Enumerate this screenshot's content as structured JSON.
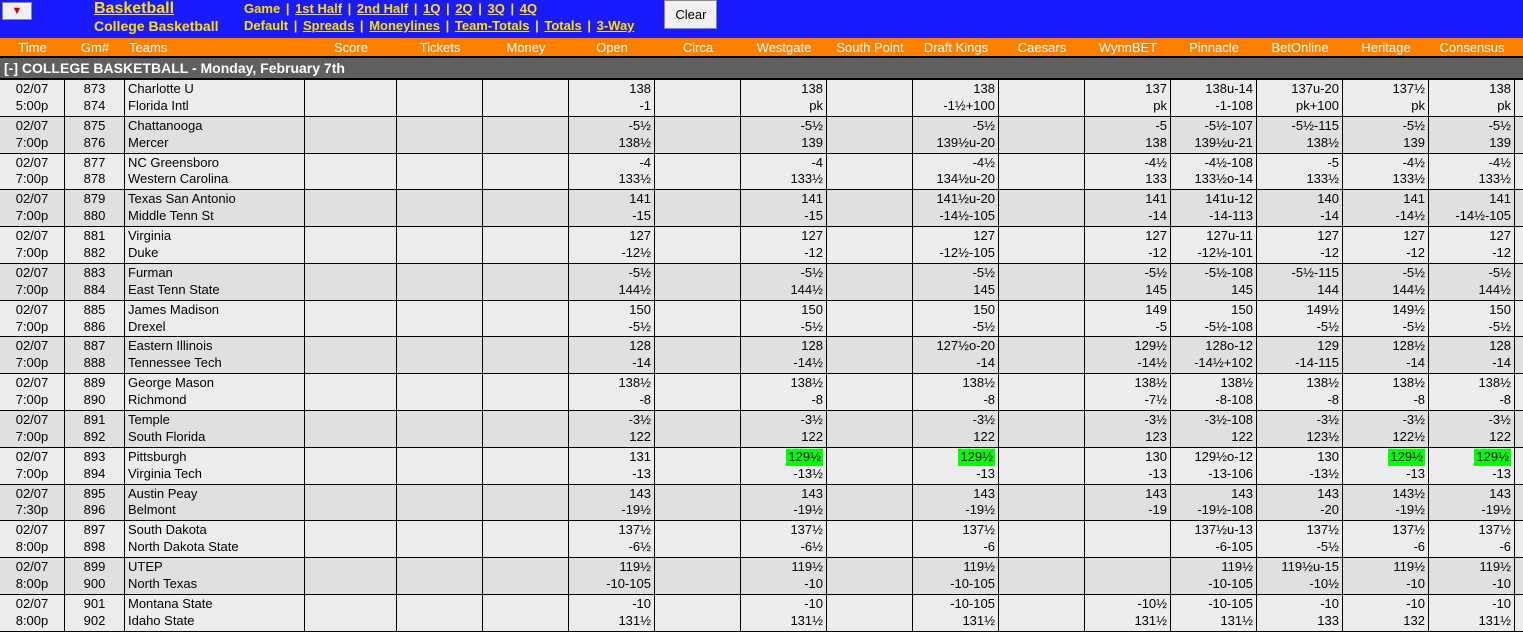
{
  "header": {
    "sport_title": "Basketball",
    "sport_sub": "College Basketball",
    "game_label": "Game",
    "links": [
      "1st Half",
      "2nd Half",
      "1Q",
      "2Q",
      "3Q",
      "4Q"
    ],
    "default_label": "Default",
    "bet_links": [
      "Spreads",
      "Moneylines",
      "Team-Totals",
      "Totals",
      "3-Way"
    ],
    "clear_label": "Clear"
  },
  "columns": [
    "Time",
    "Gm#",
    "Teams",
    "Score",
    "Tickets",
    "Money",
    "Open",
    "Circa",
    "Westgate",
    "South Point",
    "Draft Kings",
    "Caesars",
    "WynnBET",
    "Pinnacle",
    "BetOnline",
    "Heritage",
    "Consensus"
  ],
  "section_title": "[-]  COLLEGE BASKETBALL - Monday, February 7th",
  "odds_books": [
    "open",
    "circa",
    "westgate",
    "southpoint",
    "dk",
    "caesars",
    "wynnbet",
    "pinnacle",
    "betonline",
    "heritage",
    "consensus"
  ],
  "colors": {
    "header_bg": "#1a1aff",
    "accent_text": "#ffe000",
    "col_header_bg": "#ff7f00",
    "section_bg": "#606060",
    "row_bg_a": "#ececec",
    "row_bg_b": "#e0e0e0",
    "highlight": "#00ff00"
  },
  "games": [
    {
      "date": "02/07",
      "time": "5:00p",
      "gm1": "873",
      "gm2": "874",
      "team1": "Charlotte U",
      "team2": "Florida Intl",
      "open": [
        "138",
        "-1"
      ],
      "circa": [
        "",
        ""
      ],
      "westgate": [
        "138",
        "pk"
      ],
      "southpoint": [
        "",
        ""
      ],
      "dk": [
        "138",
        "-1½+100"
      ],
      "caesars": [
        "",
        ""
      ],
      "wynnbet": [
        "137",
        "pk"
      ],
      "pinnacle": [
        "138u-14",
        "-1-108"
      ],
      "betonline": [
        "137u-20",
        "pk+100"
      ],
      "heritage": [
        "137½",
        "pk"
      ],
      "consensus": [
        "138",
        "pk"
      ]
    },
    {
      "date": "02/07",
      "time": "7:00p",
      "gm1": "875",
      "gm2": "876",
      "team1": "Chattanooga",
      "team2": "Mercer",
      "open": [
        "-5½",
        "138½"
      ],
      "circa": [
        "",
        ""
      ],
      "westgate": [
        "-5½",
        "139"
      ],
      "southpoint": [
        "",
        ""
      ],
      "dk": [
        "-5½",
        "139½u-20"
      ],
      "caesars": [
        "",
        ""
      ],
      "wynnbet": [
        "-5",
        "138"
      ],
      "pinnacle": [
        "-5½-107",
        "139½u-21"
      ],
      "betonline": [
        "-5½-115",
        "138½"
      ],
      "heritage": [
        "-5½",
        "139"
      ],
      "consensus": [
        "-5½",
        "139"
      ]
    },
    {
      "date": "02/07",
      "time": "7:00p",
      "gm1": "877",
      "gm2": "878",
      "team1": "NC Greensboro",
      "team2": "Western Carolina",
      "open": [
        "-4",
        "133½"
      ],
      "circa": [
        "",
        ""
      ],
      "westgate": [
        "-4",
        "133½"
      ],
      "southpoint": [
        "",
        ""
      ],
      "dk": [
        "-4½",
        "134½u-20"
      ],
      "caesars": [
        "",
        ""
      ],
      "wynnbet": [
        "-4½",
        "133"
      ],
      "pinnacle": [
        "-4½-108",
        "133½o-14"
      ],
      "betonline": [
        "-5",
        "133½"
      ],
      "heritage": [
        "-4½",
        "133½"
      ],
      "consensus": [
        "-4½",
        "133½"
      ]
    },
    {
      "date": "02/07",
      "time": "7:00p",
      "gm1": "879",
      "gm2": "880",
      "team1": "Texas San Antonio",
      "team2": "Middle Tenn St",
      "open": [
        "141",
        "-15"
      ],
      "circa": [
        "",
        ""
      ],
      "westgate": [
        "141",
        "-15"
      ],
      "southpoint": [
        "",
        ""
      ],
      "dk": [
        "141½u-20",
        "-14½-105"
      ],
      "caesars": [
        "",
        ""
      ],
      "wynnbet": [
        "141",
        "-14"
      ],
      "pinnacle": [
        "141u-12",
        "-14-113"
      ],
      "betonline": [
        "140",
        "-14"
      ],
      "heritage": [
        "141",
        "-14½"
      ],
      "consensus": [
        "141",
        "-14½-105"
      ]
    },
    {
      "date": "02/07",
      "time": "7:00p",
      "gm1": "881",
      "gm2": "882",
      "team1": "Virginia",
      "team2": "Duke",
      "open": [
        "127",
        "-12½"
      ],
      "circa": [
        "",
        ""
      ],
      "westgate": [
        "127",
        "-12"
      ],
      "southpoint": [
        "",
        ""
      ],
      "dk": [
        "127",
        "-12½-105"
      ],
      "caesars": [
        "",
        ""
      ],
      "wynnbet": [
        "127",
        "-12"
      ],
      "pinnacle": [
        "127u-11",
        "-12½-101"
      ],
      "betonline": [
        "127",
        "-12"
      ],
      "heritage": [
        "127",
        "-12"
      ],
      "consensus": [
        "127",
        "-12"
      ]
    },
    {
      "date": "02/07",
      "time": "7:00p",
      "gm1": "883",
      "gm2": "884",
      "team1": "Furman",
      "team2": "East Tenn State",
      "open": [
        "-5½",
        "144½"
      ],
      "circa": [
        "",
        ""
      ],
      "westgate": [
        "-5½",
        "144½"
      ],
      "southpoint": [
        "",
        ""
      ],
      "dk": [
        "-5½",
        "145"
      ],
      "caesars": [
        "",
        ""
      ],
      "wynnbet": [
        "-5½",
        "145"
      ],
      "pinnacle": [
        "-5½-108",
        "145"
      ],
      "betonline": [
        "-5½-115",
        "144"
      ],
      "heritage": [
        "-5½",
        "144½"
      ],
      "consensus": [
        "-5½",
        "144½"
      ]
    },
    {
      "date": "02/07",
      "time": "7:00p",
      "gm1": "885",
      "gm2": "886",
      "team1": "James Madison",
      "team2": "Drexel",
      "open": [
        "150",
        "-5½"
      ],
      "circa": [
        "",
        ""
      ],
      "westgate": [
        "150",
        "-5½"
      ],
      "southpoint": [
        "",
        ""
      ],
      "dk": [
        "150",
        "-5½"
      ],
      "caesars": [
        "",
        ""
      ],
      "wynnbet": [
        "149",
        "-5"
      ],
      "pinnacle": [
        "150",
        "-5½-108"
      ],
      "betonline": [
        "149½",
        "-5½"
      ],
      "heritage": [
        "149½",
        "-5½"
      ],
      "consensus": [
        "150",
        "-5½"
      ]
    },
    {
      "date": "02/07",
      "time": "7:00p",
      "gm1": "887",
      "gm2": "888",
      "team1": "Eastern Illinois",
      "team2": "Tennessee Tech",
      "open": [
        "128",
        "-14"
      ],
      "circa": [
        "",
        ""
      ],
      "westgate": [
        "128",
        "-14½"
      ],
      "southpoint": [
        "",
        ""
      ],
      "dk": [
        "127½o-20",
        "-14"
      ],
      "caesars": [
        "",
        ""
      ],
      "wynnbet": [
        "129½",
        "-14½"
      ],
      "pinnacle": [
        "128o-12",
        "-14½+102"
      ],
      "betonline": [
        "129",
        "-14-115"
      ],
      "heritage": [
        "128½",
        "-14"
      ],
      "consensus": [
        "128",
        "-14"
      ]
    },
    {
      "date": "02/07",
      "time": "7:00p",
      "gm1": "889",
      "gm2": "890",
      "team1": "George Mason",
      "team2": "Richmond",
      "open": [
        "138½",
        "-8"
      ],
      "circa": [
        "",
        ""
      ],
      "westgate": [
        "138½",
        "-8"
      ],
      "southpoint": [
        "",
        ""
      ],
      "dk": [
        "138½",
        "-8"
      ],
      "caesars": [
        "",
        ""
      ],
      "wynnbet": [
        "138½",
        "-7½"
      ],
      "pinnacle": [
        "138½",
        "-8-108"
      ],
      "betonline": [
        "138½",
        "-8"
      ],
      "heritage": [
        "138½",
        "-8"
      ],
      "consensus": [
        "138½",
        "-8"
      ]
    },
    {
      "date": "02/07",
      "time": "7:00p",
      "gm1": "891",
      "gm2": "892",
      "team1": "Temple",
      "team2": "South Florida",
      "open": [
        "-3½",
        "122"
      ],
      "circa": [
        "",
        ""
      ],
      "westgate": [
        "-3½",
        "122"
      ],
      "southpoint": [
        "",
        ""
      ],
      "dk": [
        "-3½",
        "122"
      ],
      "caesars": [
        "",
        ""
      ],
      "wynnbet": [
        "-3½",
        "123"
      ],
      "pinnacle": [
        "-3½-108",
        "122"
      ],
      "betonline": [
        "-3½",
        "123½"
      ],
      "heritage": [
        "-3½",
        "122½"
      ],
      "consensus": [
        "-3½",
        "122"
      ]
    },
    {
      "date": "02/07",
      "time": "7:00p",
      "gm1": "893",
      "gm2": "894",
      "team1": "Pittsburgh",
      "team2": "Virginia Tech",
      "open": [
        "131",
        "-13"
      ],
      "circa": [
        "",
        ""
      ],
      "westgate": [
        "129½",
        "-13½"
      ],
      "westgate_hl": [
        true,
        false
      ],
      "southpoint": [
        "",
        ""
      ],
      "dk": [
        "129½",
        "-13"
      ],
      "dk_hl": [
        true,
        false
      ],
      "caesars": [
        "",
        ""
      ],
      "wynnbet": [
        "130",
        "-13"
      ],
      "pinnacle": [
        "129½o-12",
        "-13-106"
      ],
      "betonline": [
        "130",
        "-13½"
      ],
      "heritage": [
        "129½",
        "-13"
      ],
      "heritage_hl": [
        true,
        false
      ],
      "consensus": [
        "129½",
        "-13"
      ],
      "consensus_hl": [
        true,
        false
      ]
    },
    {
      "date": "02/07",
      "time": "7:30p",
      "gm1": "895",
      "gm2": "896",
      "team1": "Austin Peay",
      "team2": "Belmont",
      "open": [
        "143",
        "-19½"
      ],
      "circa": [
        "",
        ""
      ],
      "westgate": [
        "143",
        "-19½"
      ],
      "southpoint": [
        "",
        ""
      ],
      "dk": [
        "143",
        "-19½"
      ],
      "caesars": [
        "",
        ""
      ],
      "wynnbet": [
        "143",
        "-19"
      ],
      "pinnacle": [
        "143",
        "-19½-108"
      ],
      "betonline": [
        "143",
        "-20"
      ],
      "heritage": [
        "143½",
        "-19½"
      ],
      "consensus": [
        "143",
        "-19½"
      ]
    },
    {
      "date": "02/07",
      "time": "8:00p",
      "gm1": "897",
      "gm2": "898",
      "team1": "South Dakota",
      "team2": "North Dakota State",
      "open": [
        "137½",
        "-6½"
      ],
      "circa": [
        "",
        ""
      ],
      "westgate": [
        "137½",
        "-6½"
      ],
      "southpoint": [
        "",
        ""
      ],
      "dk": [
        "137½",
        "-6"
      ],
      "caesars": [
        "",
        ""
      ],
      "wynnbet": [
        "",
        ""
      ],
      "pinnacle": [
        "137½u-13",
        "-6-105"
      ],
      "betonline": [
        "137½",
        "-5½"
      ],
      "heritage": [
        "137½",
        "-6"
      ],
      "consensus": [
        "137½",
        "-6"
      ]
    },
    {
      "date": "02/07",
      "time": "8:00p",
      "gm1": "899",
      "gm2": "900",
      "team1": "UTEP",
      "team2": "North Texas",
      "open": [
        "119½",
        "-10-105"
      ],
      "circa": [
        "",
        ""
      ],
      "westgate": [
        "119½",
        "-10"
      ],
      "southpoint": [
        "",
        ""
      ],
      "dk": [
        "119½",
        "-10-105"
      ],
      "caesars": [
        "",
        ""
      ],
      "wynnbet": [
        "",
        ""
      ],
      "pinnacle": [
        "119½",
        "-10-105"
      ],
      "betonline": [
        "119½u-15",
        "-10½"
      ],
      "heritage": [
        "119½",
        "-10"
      ],
      "consensus": [
        "119½",
        "-10"
      ]
    },
    {
      "date": "02/07",
      "time": "8:00p",
      "gm1": "901",
      "gm2": "902",
      "team1": "Montana State",
      "team2": "Idaho State",
      "open": [
        "-10",
        "131½"
      ],
      "circa": [
        "",
        ""
      ],
      "westgate": [
        "-10",
        "131½"
      ],
      "southpoint": [
        "",
        ""
      ],
      "dk": [
        "-10-105",
        "131½"
      ],
      "caesars": [
        "",
        ""
      ],
      "wynnbet": [
        "-10½",
        "131½"
      ],
      "pinnacle": [
        "-10-105",
        "131½"
      ],
      "betonline": [
        "-10",
        "133"
      ],
      "heritage": [
        "-10",
        "132"
      ],
      "consensus": [
        "-10",
        "131½"
      ]
    }
  ]
}
